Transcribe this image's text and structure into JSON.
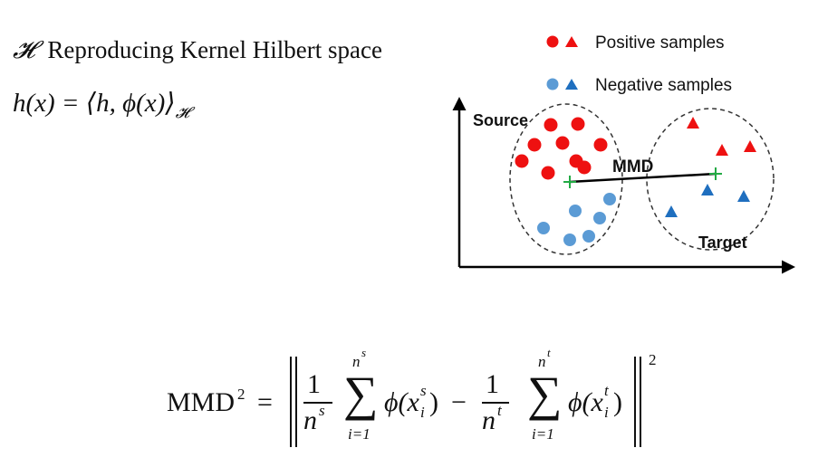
{
  "rkhs": {
    "symbol": "𝓗",
    "label": "Reproducing Kernel Hilbert space"
  },
  "kernel_eq": {
    "lhs": "h(x) = ",
    "rhs": "⟨h, ϕ(x)⟩",
    "subscript": "𝓗"
  },
  "diagram": {
    "legend": {
      "positive": "Positive samples",
      "negative": "Negative samples"
    },
    "source_label": "Source",
    "target_label": "Target",
    "mmd_label": "MMD",
    "colors": {
      "positive": "#ee1111",
      "negative_source": "#5b9bd5",
      "negative_target": "#1f6fbf",
      "mean_marker": "#22aa44",
      "axis": "#000000"
    }
  },
  "mmd_eq": {
    "lhs": "MMD",
    "lhs_power": "2",
    "equals": "=",
    "one": "1",
    "n_s": "n",
    "n_s_sup": "s",
    "n_t": "n",
    "n_t_sup": "t",
    "sum_upper_s": "n",
    "sum_upper_s_sup": "s",
    "sum_upper_t": "n",
    "sum_upper_t_sup": "t",
    "sum_lower": "i=1",
    "phi_s": "ϕ(x",
    "phi_s_sub": "i",
    "phi_s_sup": "s",
    "phi_t": "ϕ(x",
    "phi_t_sub": "i",
    "phi_t_sup": "t",
    "minus": "−",
    "close": ")",
    "outer_power": "2"
  }
}
